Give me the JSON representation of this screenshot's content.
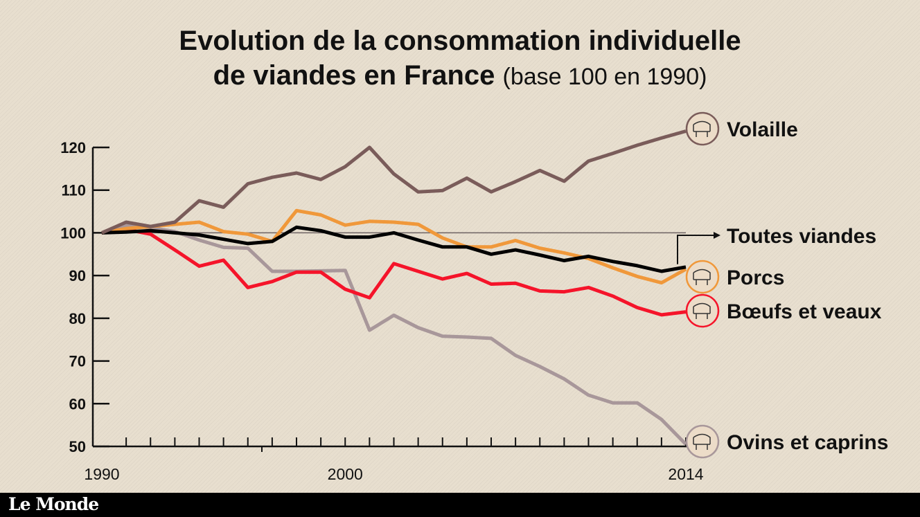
{
  "chart_data": {
    "type": "line",
    "title_line1": "Evolution de la consommation individuelle",
    "title_line2": "de viandes en France",
    "subtitle": "(base 100 en 1990)",
    "xlabel": "",
    "ylabel": "",
    "x": [
      1990,
      1991,
      1992,
      1993,
      1994,
      1995,
      1996,
      1997,
      1998,
      1999,
      2000,
      2001,
      2002,
      2003,
      2004,
      2005,
      2006,
      2007,
      2008,
      2009,
      2010,
      2011,
      2012,
      2013,
      2014
    ],
    "x_tick_labels": [
      "1990",
      "2000",
      "2014"
    ],
    "y_tick_labels": [
      "120",
      "110",
      "100",
      "90",
      "80",
      "70",
      "60",
      "50"
    ],
    "ylim": [
      50,
      120
    ],
    "reference_line": 100,
    "grid": false,
    "legend_placement": "right (direct labels at line ends)",
    "series": [
      {
        "name": "Volaille",
        "color": "#7a5c5a",
        "icon": "chicken-icon",
        "values": [
          100,
          102.5,
          101.5,
          102.5,
          107.5,
          106,
          111.5,
          113,
          114,
          112.5,
          115.5,
          120,
          113.8,
          109.6,
          109.9,
          112.8,
          109.6,
          112,
          114.6,
          112.1,
          116.8,
          118.6,
          120.5,
          122.2,
          123.8
        ]
      },
      {
        "name": "Toutes viandes",
        "color": "#000000",
        "icon": "arrow-icon",
        "values": [
          100,
          100.2,
          100.5,
          100,
          99.5,
          98.5,
          97.5,
          98,
          101.3,
          100.5,
          99,
          99,
          100,
          98.3,
          96.7,
          96.7,
          95,
          96,
          94.8,
          93.5,
          94.5,
          93.3,
          92.3,
          91,
          92
        ]
      },
      {
        "name": "Porcs",
        "color": "#f0983a",
        "icon": "pig-icon",
        "values": [
          100,
          101,
          101.5,
          102,
          102.5,
          100.3,
          99.7,
          98,
          105.2,
          104.2,
          101.8,
          102.7,
          102.5,
          102,
          98.8,
          96.7,
          96.7,
          98.2,
          96.4,
          95.3,
          94,
          91.8,
          89.8,
          88.3,
          91.5
        ]
      },
      {
        "name": "Bœufs et veaux",
        "color": "#f5142a",
        "icon": "cow-icon",
        "values": [
          100,
          100.8,
          99.7,
          96,
          92.2,
          93.6,
          87.2,
          88.6,
          90.8,
          90.8,
          86.8,
          84.8,
          92.8,
          91,
          89.2,
          90.5,
          88,
          88.2,
          86.4,
          86.2,
          87.2,
          85.2,
          82.5,
          80.8,
          81.5
        ]
      },
      {
        "name": "Ovins et caprins",
        "color": "#a8979a",
        "icon": "sheep-icon",
        "values": [
          100,
          101.7,
          101.2,
          100.3,
          98.3,
          96.6,
          96.4,
          91,
          91,
          91.1,
          91.2,
          77.2,
          80.7,
          77.8,
          75.8,
          75.6,
          75.3,
          71.3,
          68.7,
          65.8,
          62,
          60.2,
          60.2,
          56.3,
          50.5
        ]
      }
    ]
  },
  "footer": {
    "logo": "Le Monde"
  }
}
